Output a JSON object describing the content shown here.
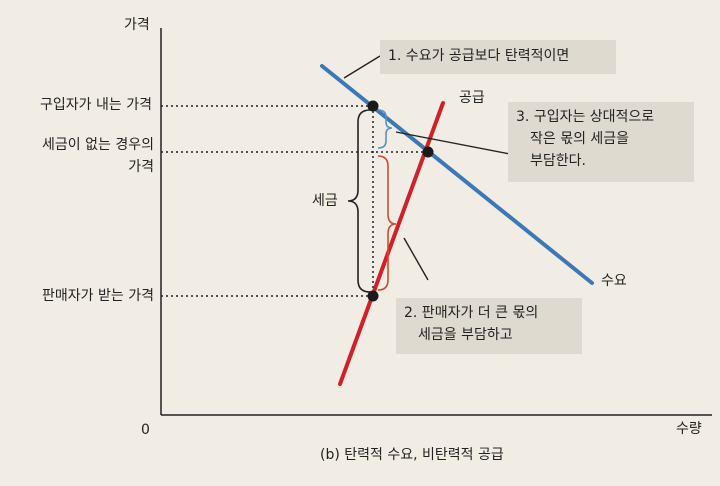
{
  "axes": {
    "y_label": "가격",
    "x_label": "수량",
    "origin": "0"
  },
  "price_labels": {
    "buyer": "구입자가 내는 가격",
    "no_tax_line1": "세금이 없는 경우의",
    "no_tax_line2": "가격",
    "seller": "판매자가 받는 가격"
  },
  "curve_labels": {
    "supply": "공급",
    "demand": "수요"
  },
  "tax_label": "세금",
  "notes": {
    "note1": "1. 수요가 공급보다 탄력적이면",
    "note2_line1": "2. 판매자가 더 큰 몫의",
    "note2_line2": "세금을 부담하고",
    "note3_line1": "3. 구입자는 상대적으로",
    "note3_line2": "작은 몫의 세금을",
    "note3_line3": "부담한다."
  },
  "caption": "(b) 탄력적 수요, 비탄력적 공급",
  "colors": {
    "demand": "#3b78b5",
    "supply": "#d0202a",
    "buyer_brace": "#5b8fc6",
    "seller_brace": "#cf4b35",
    "background": "#f1ede4",
    "note_box": "#dedad0"
  }
}
